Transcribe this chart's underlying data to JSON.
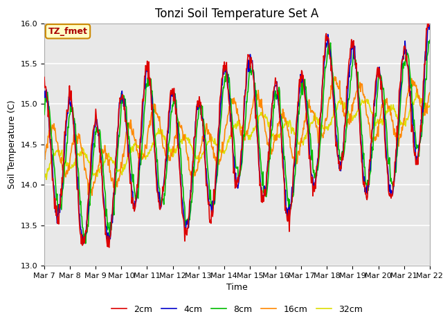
{
  "title": "Tonzi Soil Temperature Set A",
  "xlabel": "Time",
  "ylabel": "Soil Temperature (C)",
  "ylim": [
    13.0,
    16.0
  ],
  "yticks": [
    13.0,
    13.5,
    14.0,
    14.5,
    15.0,
    15.5,
    16.0
  ],
  "x_tick_labels": [
    "Mar 7",
    "Mar 8",
    "Mar 9",
    "Mar 10",
    "Mar 11",
    "Mar 12",
    "Mar 13",
    "Mar 14",
    "Mar 15",
    "Mar 16",
    "Mar 17",
    "Mar 18",
    "Mar 19",
    "Mar 20",
    "Mar 21",
    "Mar 22"
  ],
  "line_colors": [
    "#dd0000",
    "#0000cc",
    "#00bb00",
    "#ff8800",
    "#dddd00"
  ],
  "line_labels": [
    "2cm",
    "4cm",
    "8cm",
    "16cm",
    "32cm"
  ],
  "legend_box_label": "TZ_fmet",
  "legend_box_color": "#ffffc8",
  "legend_box_edge_color": "#cc8800",
  "background_color": "#e8e8e8",
  "figure_bg": "#ffffff",
  "title_fontsize": 12,
  "axis_label_fontsize": 9,
  "tick_fontsize": 8,
  "grid_color": "#ffffff",
  "line_width": 1.2
}
